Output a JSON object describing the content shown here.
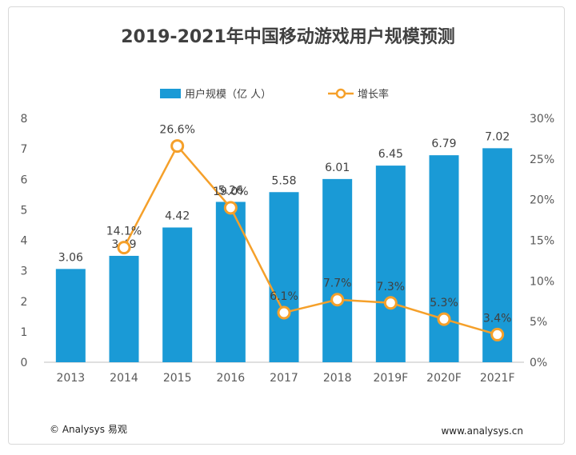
{
  "page": {
    "copyright": "© Analysys 易观",
    "url": "www.analysys.cn"
  },
  "chart_data": {
    "type": "bar",
    "title": "2019-2021年中国移动游戏用户规模预测",
    "categories": [
      "2013",
      "2014",
      "2015",
      "2016",
      "2017",
      "2018",
      "2019F",
      "2020F",
      "2021F"
    ],
    "series": [
      {
        "name": "用户规模（亿 人）",
        "kind": "bar",
        "axis": "left",
        "values": [
          3.06,
          3.49,
          4.42,
          5.26,
          5.58,
          6.01,
          6.45,
          6.79,
          7.02
        ],
        "labels": [
          "3.06",
          "3.49",
          "4.42",
          "5.26",
          "5.58",
          "6.01",
          "6.45",
          "6.79",
          "7.02"
        ],
        "color": "#1a9ad6"
      },
      {
        "name": "增长率",
        "kind": "line",
        "axis": "right",
        "values": [
          null,
          14.1,
          26.6,
          19.0,
          6.1,
          7.7,
          7.3,
          5.3,
          3.4
        ],
        "labels": [
          "",
          "14.1%",
          "26.6%",
          "19.0%",
          "6.1%",
          "7.7%",
          "7.3%",
          "5.3%",
          "3.4%"
        ],
        "color": "#f5a02a"
      }
    ],
    "y_left": {
      "range": [
        0,
        8
      ],
      "ticks": [
        "0",
        "1",
        "2",
        "3",
        "4",
        "5",
        "6",
        "7",
        "8"
      ]
    },
    "y_right": {
      "range": [
        0,
        30
      ],
      "ticks": [
        "0%",
        "5%",
        "10%",
        "15%",
        "20%",
        "25%",
        "30%"
      ]
    },
    "legend_position": "top-center",
    "grid": false
  }
}
